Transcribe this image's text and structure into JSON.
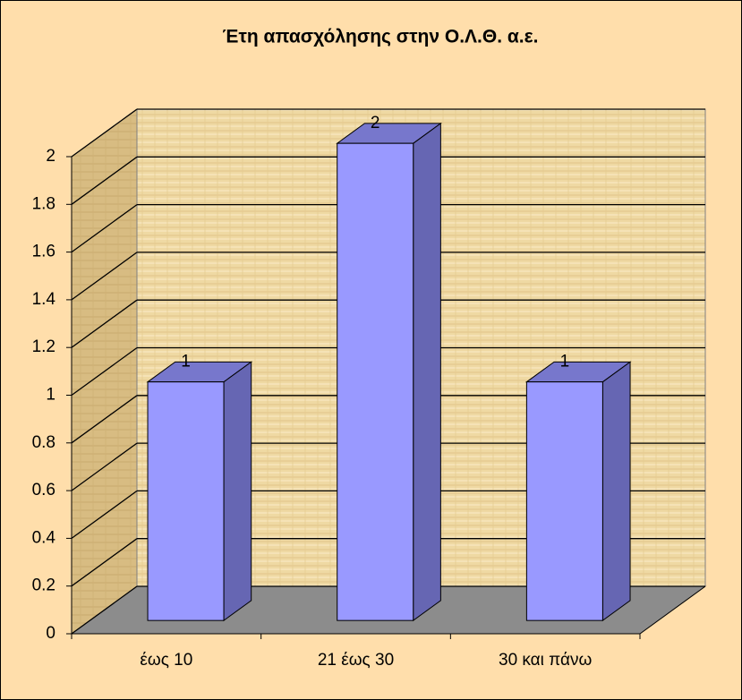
{
  "chart_data": {
    "type": "bar3d",
    "title": "Έτη απασχόλησης στην Ο.Λ.Θ. α.ε.",
    "categories": [
      "έως 10",
      "21 έως 30",
      "30 και πάνω"
    ],
    "values": [
      1,
      2,
      1
    ],
    "color": "#9999ff",
    "ylim": [
      0,
      2
    ],
    "yticks": [
      0,
      0.2,
      0.4,
      0.6,
      0.8,
      1,
      1.2,
      1.4,
      1.6,
      1.8,
      2
    ],
    "grid": true,
    "data_labels": true
  }
}
